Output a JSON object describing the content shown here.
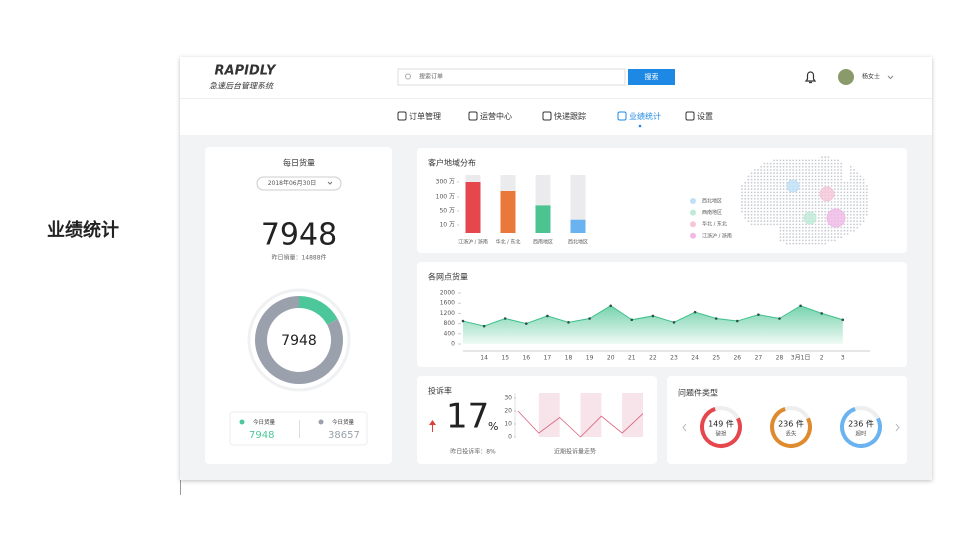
{
  "page_label": "业绩统计",
  "header": {
    "logo": "RAPIDLY",
    "subtitle": "急速后台管理系统",
    "search_placeholder": "搜索订单",
    "search_button": "搜索",
    "user": "杨女士"
  },
  "nav": [
    {
      "label": "订单管理"
    },
    {
      "label": "运营中心"
    },
    {
      "label": "快递跟踪"
    },
    {
      "label": "业绩统计",
      "active": true
    },
    {
      "label": "设置"
    }
  ],
  "daily": {
    "title": "每日货量",
    "date": "2018年06月30日",
    "yesterday": "昨日销量：14888件",
    "donut": {
      "type": "donut",
      "categories": [
        "今日货量",
        "今日货量"
      ],
      "values": [
        7948,
        38657
      ],
      "colors": [
        "#4cc79a",
        "#9aa1ac"
      ]
    }
  },
  "region": {
    "type": "bar",
    "title": "客户地域分布",
    "categories": [
      "江浙沪 / 浙南",
      "华北 / 东北",
      "西南地区",
      "西北地区"
    ],
    "values": [
      300,
      180,
      70,
      25
    ],
    "colors": [
      "#e5474d",
      "#e8793a",
      "#4dc391",
      "#6ab3f0"
    ],
    "ylim": [
      0,
      400
    ],
    "yticks": [
      {
        "value": 10,
        "label": "10 万"
      },
      {
        "value": 50,
        "label": "50 万"
      },
      {
        "value": 100,
        "label": "100 万"
      },
      {
        "value": 300,
        "label": "300 万"
      }
    ],
    "map_legend": [
      {
        "name": "西北地区",
        "color": "#bfe0f7"
      },
      {
        "name": "西南地区",
        "color": "#bfead8"
      },
      {
        "name": "华北 / 东北",
        "color": "#f5c6d6"
      },
      {
        "name": "江浙沪 / 浙南",
        "color": "#f0b9e6"
      }
    ]
  },
  "network": {
    "type": "area",
    "title": "各网点货量",
    "categories": [
      null,
      "14",
      "15",
      "16",
      "17",
      "18",
      "19",
      "20",
      "21",
      "22",
      "23",
      "24",
      "25",
      "26",
      "27",
      "28",
      "3月1日",
      "2",
      "3"
    ],
    "values": [
      900,
      700,
      1000,
      800,
      1100,
      850,
      1000,
      1500,
      950,
      1100,
      850,
      1250,
      1000,
      900,
      1150,
      1000,
      1500,
      1200,
      950
    ],
    "color": "#3cc08a",
    "ylim": [
      0,
      2000
    ],
    "yticks": [
      0,
      400,
      800,
      1200,
      1600,
      2000
    ]
  },
  "complaint": {
    "title": "投诉率",
    "rate": 17,
    "rate_unit": "%",
    "yesterday": "昨日投诉率：8%",
    "trend": {
      "type": "line",
      "caption": "近期投诉量走势",
      "values": [
        20,
        3,
        15,
        0,
        16,
        3,
        18
      ],
      "color": "#d9607a",
      "ylim": [
        0,
        30
      ],
      "yticks": [
        0,
        10,
        20,
        30
      ]
    }
  },
  "problems": {
    "title": "问题件类型",
    "categories": [
      "破损",
      "丢失",
      "超时"
    ],
    "values": [
      149,
      236,
      236
    ],
    "value_labels": [
      "149 件",
      "236 件",
      "236 件"
    ],
    "colors": [
      "#e5474d",
      "#e08a2e",
      "#6ab3f0"
    ]
  }
}
